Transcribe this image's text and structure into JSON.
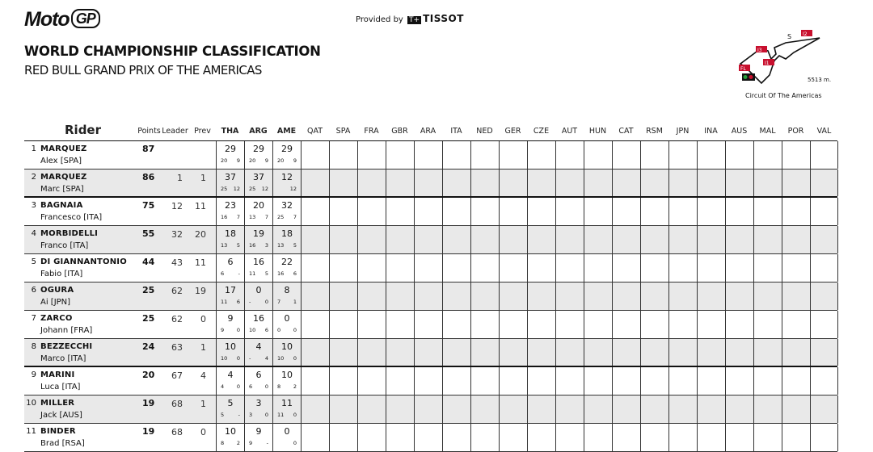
{
  "header": {
    "logo": "MotoGP",
    "provided_by": "Provided by",
    "sponsor": "TISSOT",
    "title": "WORLD CHAMPIONSHIP CLASSIFICATION",
    "subtitle": "RED BULL GRAND PRIX OF THE AMERICAS"
  },
  "circuit": {
    "name": "Circuit Of The Americas",
    "length": "5513 m.",
    "labels": [
      "S",
      "I2",
      "I3",
      "I1",
      "FL"
    ]
  },
  "columns": {
    "rider": "Rider",
    "points": "Points",
    "leader": "Leader",
    "prev": "Prev",
    "races": [
      "THA",
      "ARG",
      "AME",
      "QAT",
      "SPA",
      "FRA",
      "GBR",
      "ARA",
      "ITA",
      "NED",
      "GER",
      "CZE",
      "AUT",
      "HUN",
      "CAT",
      "RSM",
      "JPN",
      "INA",
      "AUS",
      "MAL",
      "POR",
      "VAL"
    ]
  },
  "riders": [
    {
      "pos": "1",
      "surname": "MARQUEZ",
      "first": "Alex [SPA]",
      "points": "87",
      "leader": "",
      "prev": "",
      "results": [
        [
          "29",
          "20",
          "9"
        ],
        [
          "29",
          "20",
          "9"
        ],
        [
          "29",
          "20",
          "9"
        ]
      ]
    },
    {
      "pos": "2",
      "surname": "MARQUEZ",
      "first": "Marc [SPA]",
      "points": "86",
      "leader": "1",
      "prev": "1",
      "results": [
        [
          "37",
          "25",
          "12"
        ],
        [
          "37",
          "25",
          "12"
        ],
        [
          "12",
          "",
          "12"
        ]
      ]
    },
    {
      "pos": "3",
      "surname": "BAGNAIA",
      "first": "Francesco [ITA]",
      "points": "75",
      "leader": "12",
      "prev": "11",
      "results": [
        [
          "23",
          "16",
          "7"
        ],
        [
          "20",
          "13",
          "7"
        ],
        [
          "32",
          "25",
          "7"
        ]
      ]
    },
    {
      "pos": "4",
      "surname": "MORBIDELLI",
      "first": "Franco [ITA]",
      "points": "55",
      "leader": "32",
      "prev": "20",
      "results": [
        [
          "18",
          "13",
          "5"
        ],
        [
          "19",
          "16",
          "3"
        ],
        [
          "18",
          "13",
          "5"
        ]
      ]
    },
    {
      "pos": "5",
      "surname": "DI GIANNANTONIO",
      "first": "Fabio [ITA]",
      "points": "44",
      "leader": "43",
      "prev": "11",
      "results": [
        [
          "6",
          "6",
          "-"
        ],
        [
          "16",
          "11",
          "5"
        ],
        [
          "22",
          "16",
          "6"
        ]
      ]
    },
    {
      "pos": "6",
      "surname": "OGURA",
      "first": "Ai [JPN]",
      "points": "25",
      "leader": "62",
      "prev": "19",
      "results": [
        [
          "17",
          "11",
          "6"
        ],
        [
          "0",
          "-",
          "0"
        ],
        [
          "8",
          "7",
          "1"
        ]
      ]
    },
    {
      "pos": "7",
      "surname": "ZARCO",
      "first": "Johann [FRA]",
      "points": "25",
      "leader": "62",
      "prev": "0",
      "results": [
        [
          "9",
          "9",
          "0"
        ],
        [
          "16",
          "10",
          "6"
        ],
        [
          "0",
          "0",
          "0"
        ]
      ]
    },
    {
      "pos": "8",
      "surname": "BEZZECCHI",
      "first": "Marco [ITA]",
      "points": "24",
      "leader": "63",
      "prev": "1",
      "results": [
        [
          "10",
          "10",
          "0"
        ],
        [
          "4",
          "-",
          "4"
        ],
        [
          "10",
          "10",
          "0"
        ]
      ]
    },
    {
      "pos": "9",
      "surname": "MARINI",
      "first": "Luca [ITA]",
      "points": "20",
      "leader": "67",
      "prev": "4",
      "results": [
        [
          "4",
          "4",
          "0"
        ],
        [
          "6",
          "6",
          "0"
        ],
        [
          "10",
          "8",
          "2"
        ]
      ]
    },
    {
      "pos": "10",
      "surname": "MILLER",
      "first": "Jack [AUS]",
      "points": "19",
      "leader": "68",
      "prev": "1",
      "results": [
        [
          "5",
          "5",
          "-"
        ],
        [
          "3",
          "3",
          "0"
        ],
        [
          "11",
          "11",
          "0"
        ]
      ]
    },
    {
      "pos": "11",
      "surname": "BINDER",
      "first": "Brad [RSA]",
      "points": "19",
      "leader": "68",
      "prev": "0",
      "results": [
        [
          "10",
          "8",
          "2"
        ],
        [
          "9",
          "9",
          "-"
        ],
        [
          "0",
          "",
          "0"
        ]
      ]
    }
  ]
}
